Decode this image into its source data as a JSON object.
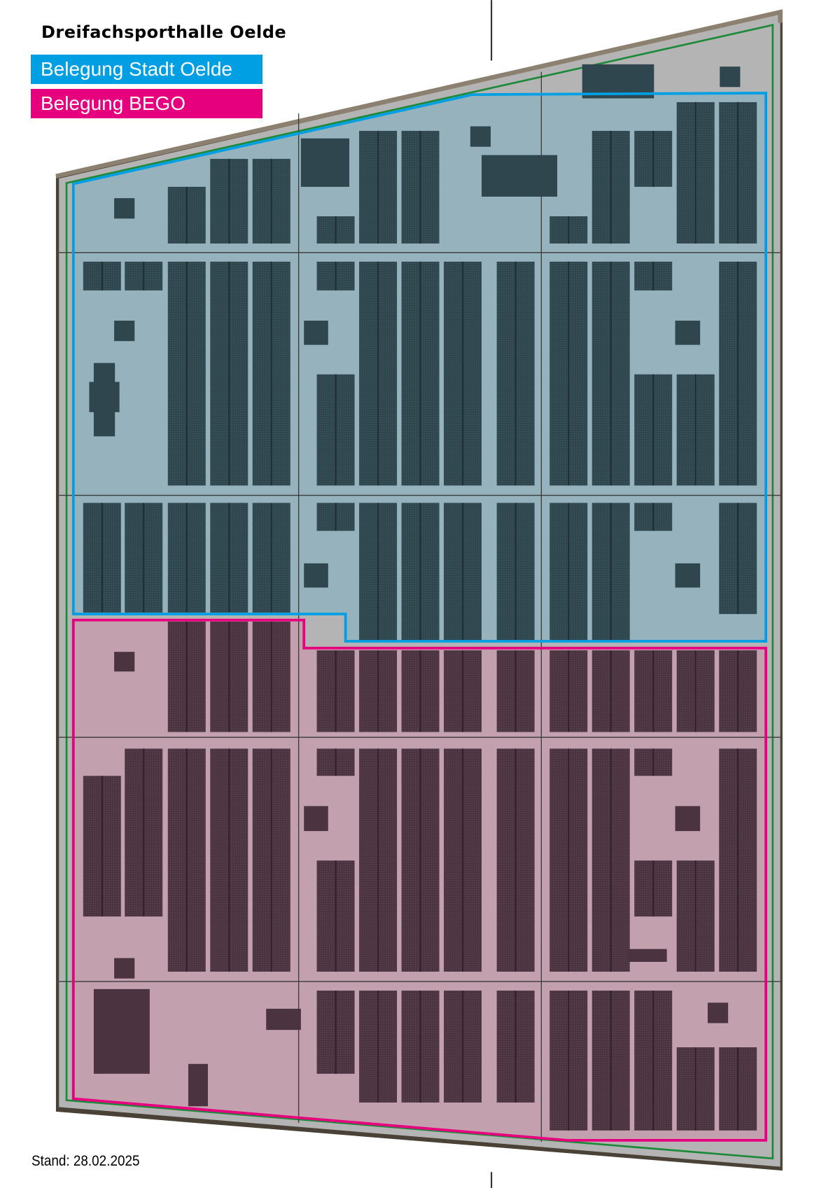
{
  "title": "Dreifachsporthalle Oelde",
  "legend": [
    {
      "label": "Belegung Stadt Oelde",
      "color": "#009fe3"
    },
    {
      "label": "Belegung BEGO",
      "color": "#e6007e"
    }
  ],
  "footer": "Stand: 28.02.2025",
  "colors": {
    "roof": "#b4b4b4",
    "roof_edge_top": "#8c8170",
    "roof_edge_bottom": "#4a4137",
    "boundary_green": "#1d8a3a",
    "stadt_fill": "#95b2bd",
    "stadt_modules": "#2f464e",
    "bego_fill": "#c2a0ae",
    "bego_modules": "#4b3440"
  }
}
